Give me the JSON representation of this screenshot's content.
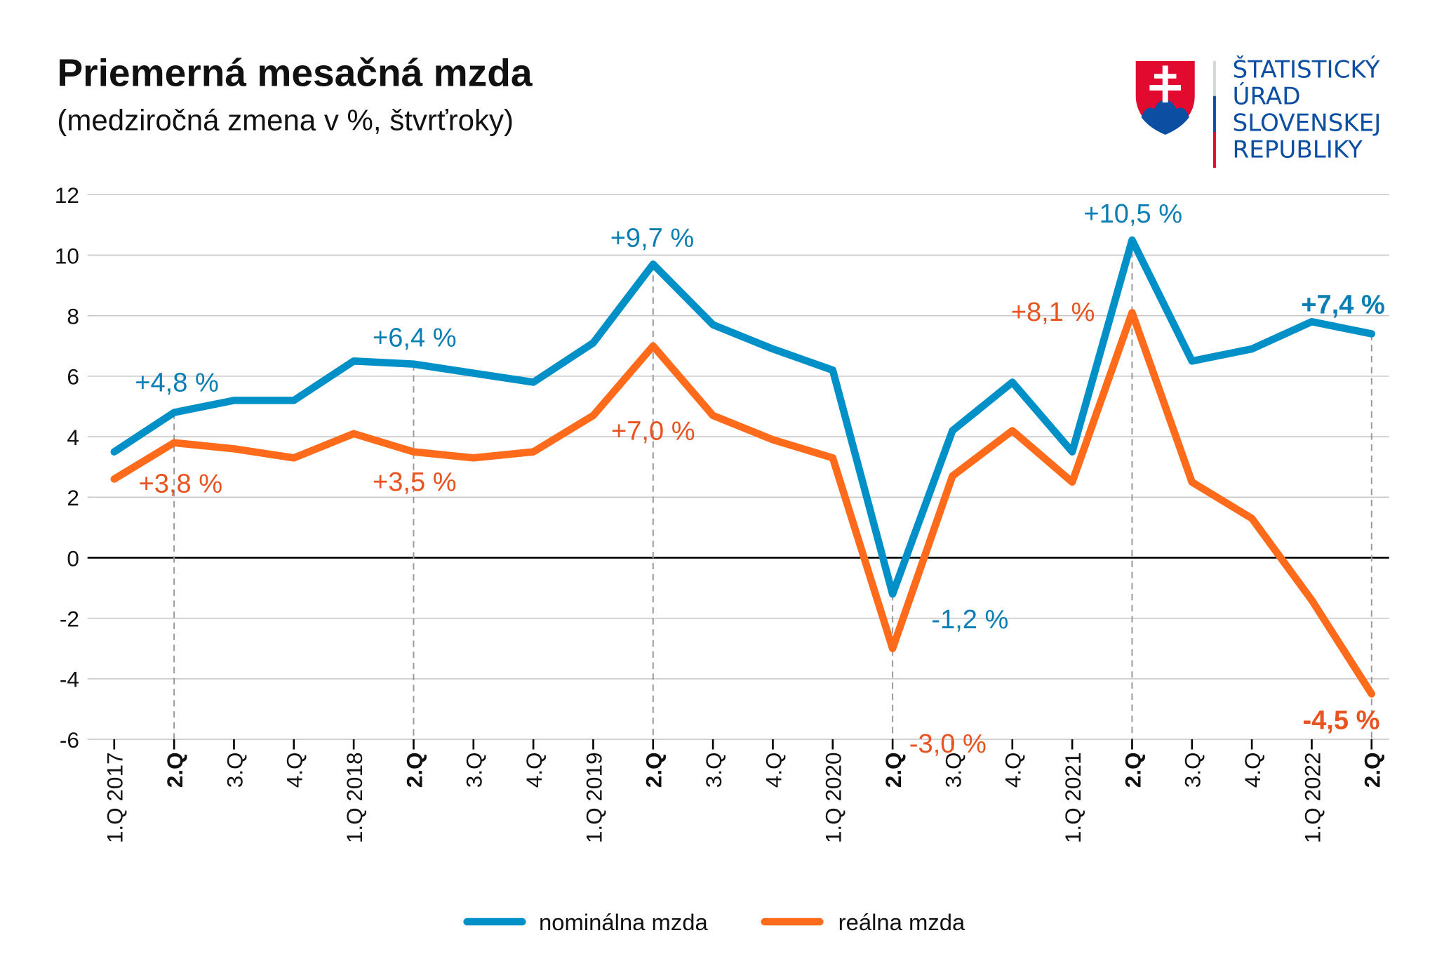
{
  "logo": {
    "lines": [
      "ŠTATISTICKÝ",
      "ÚRAD",
      "SLOVENSKEJ",
      "REPUBLIKY"
    ],
    "text_color": "#0b4ea2",
    "shield_red": "#e30a2f",
    "shield_blue": "#0b4ea2"
  },
  "chart_data": {
    "type": "line",
    "title": "Priemerná mesačná mzda",
    "subtitle": "(medziročná zmena v %, štvrťroky)",
    "categories": [
      "1.Q 2017",
      "2.Q",
      "3.Q",
      "4.Q",
      "1.Q 2018",
      "2.Q",
      "3.Q",
      "4.Q",
      "1.Q 2019",
      "2.Q",
      "3.Q",
      "4.Q",
      "1.Q 2020",
      "2.Q",
      "3.Q",
      "4.Q",
      "1.Q 2021",
      "2.Q",
      "3.Q",
      "4.Q",
      "1.Q 2022",
      "2.Q"
    ],
    "bold_categories": [
      1,
      5,
      9,
      13,
      17,
      21
    ],
    "ylim": [
      -6,
      12
    ],
    "yticks": [
      12,
      10,
      8,
      6,
      4,
      2,
      0,
      -2,
      -4,
      -6
    ],
    "grid": true,
    "legend_position": "bottom",
    "series": [
      {
        "name": "nominálna mzda",
        "color": "#0090c8",
        "label_color": "#0b7fb3",
        "values": [
          3.5,
          4.8,
          5.2,
          5.2,
          6.5,
          6.4,
          6.1,
          5.8,
          7.1,
          9.7,
          7.7,
          6.9,
          6.2,
          -1.2,
          4.2,
          5.8,
          3.5,
          10.5,
          6.5,
          6.9,
          7.8,
          7.4
        ]
      },
      {
        "name": "reálna mzda",
        "color": "#ff6b1a",
        "label_color": "#e8531f",
        "values": [
          2.6,
          3.8,
          3.6,
          3.3,
          4.1,
          3.5,
          3.3,
          3.5,
          4.7,
          7.0,
          4.7,
          3.9,
          3.3,
          -3.0,
          2.7,
          4.2,
          2.5,
          8.1,
          2.5,
          1.3,
          -1.4,
          -4.5
        ]
      }
    ],
    "annotations": [
      {
        "series": 0,
        "index": 1,
        "text": "+4,8 %",
        "bold": false
      },
      {
        "series": 1,
        "index": 1,
        "text": "+3,8 %",
        "bold": false
      },
      {
        "series": 0,
        "index": 5,
        "text": "+6,4 %",
        "bold": false
      },
      {
        "series": 1,
        "index": 5,
        "text": "+3,5 %",
        "bold": false
      },
      {
        "series": 0,
        "index": 9,
        "text": "+9,7 %",
        "bold": false
      },
      {
        "series": 1,
        "index": 9,
        "text": "+7,0 %",
        "bold": false
      },
      {
        "series": 0,
        "index": 13,
        "text": "-1,2 %",
        "bold": false
      },
      {
        "series": 1,
        "index": 13,
        "text": "-3,0 %",
        "bold": false
      },
      {
        "series": 0,
        "index": 17,
        "text": "+10,5 %",
        "bold": false
      },
      {
        "series": 1,
        "index": 17,
        "text": "+8,1 %",
        "bold": false
      },
      {
        "series": 0,
        "index": 21,
        "text": "+7,4 %",
        "bold": true
      },
      {
        "series": 1,
        "index": 21,
        "text": "-4,5 %",
        "bold": true
      }
    ]
  }
}
